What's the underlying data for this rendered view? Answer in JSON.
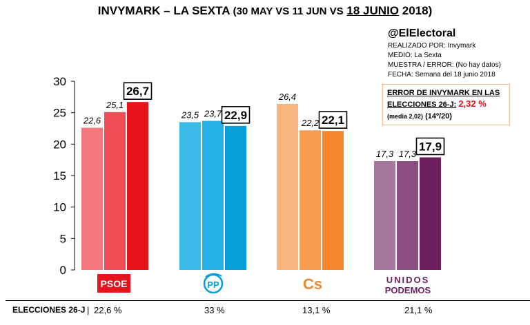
{
  "title": {
    "part1": "INVYMARK – LA SEXTA",
    "part2": "(30 MAY VS 11 JUN VS",
    "part3": "18 JUNIO",
    "part4": "2018)"
  },
  "info": {
    "handle": "@ElElectoral",
    "lines": [
      "REALIZADO POR: Invymark",
      "MEDIO: La Sexta",
      "MUESTRA / ERROR: (No hay datos)",
      "FECHA: Semana del 18 junio 2018"
    ]
  },
  "error_box": {
    "line1": "ERROR DE INVYMARK EN LAS",
    "line2_prefix": "ELECCIONES 26-J:",
    "line2_value": "2,32 %",
    "line3_small": "(media 2,02)",
    "line3_rank": "(14º/20)"
  },
  "chart_data": {
    "type": "bar",
    "title": "INVYMARK – LA SEXTA (30 MAY VS 11 JUN VS 18 JUNIO 2018)",
    "ylim": [
      0,
      30
    ],
    "yticks": [
      "0",
      "5",
      "10",
      "15",
      "20",
      "25",
      "30"
    ],
    "categories": [
      "PSOE",
      "PP",
      "Cs",
      "UNIDOS PODEMOS"
    ],
    "series_names": [
      "30 MAY",
      "11 JUN",
      "18 JUNIO"
    ],
    "groups": [
      {
        "party": "PSOE",
        "values": [
          22.6,
          25.1,
          26.7
        ],
        "labels": [
          "22,6",
          "25,1",
          "26,7"
        ],
        "colors": [
          "#f4787c",
          "#ee4d55",
          "#e8141d"
        ]
      },
      {
        "party": "PP",
        "values": [
          23.5,
          23.7,
          22.9
        ],
        "labels": [
          "23,5",
          "23,7",
          "22,9"
        ],
        "colors": [
          "#3bbbe7",
          "#25b1e5",
          "#069ed9"
        ]
      },
      {
        "party": "Cs",
        "values": [
          26.4,
          22.2,
          22.1
        ],
        "labels": [
          "26,4",
          "22,2",
          "22,1"
        ],
        "colors": [
          "#fbb57f",
          "#f89d4f",
          "#f4862d"
        ]
      },
      {
        "party": "UNIDOS PODEMOS",
        "values": [
          17.3,
          17.3,
          17.9
        ],
        "labels": [
          "17,3",
          "17,3",
          "17,9"
        ],
        "colors": [
          "#a5779c",
          "#8b4e80",
          "#6c1e5e"
        ]
      }
    ],
    "logos": {
      "psoe": "PSOE",
      "pp": "PP",
      "cs": "Cs",
      "podemos_top": "UNIDOS",
      "podemos_bottom": "PODEMOS"
    }
  },
  "bottom": {
    "label": "ELECCIONES 26-J",
    "values": [
      "22,6 %",
      "33  %",
      "13,1 %",
      "21,1 %"
    ]
  }
}
